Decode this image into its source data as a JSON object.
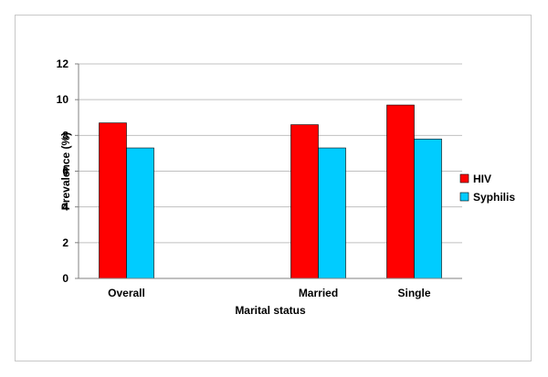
{
  "chart_data": {
    "type": "bar",
    "categories": [
      "Overall",
      "",
      "Married",
      "Single"
    ],
    "series": [
      {
        "name": "HIV",
        "color": "#ff0000",
        "values": [
          8.7,
          null,
          8.6,
          9.7
        ]
      },
      {
        "name": "Syphilis",
        "color": "#00ccff",
        "values": [
          7.3,
          null,
          7.3,
          7.8
        ]
      }
    ],
    "xlabel": "Marital status",
    "ylabel": "Prevalence (%)",
    "ylim": [
      0,
      12
    ],
    "yticks": [
      0,
      2,
      4,
      6,
      8,
      10,
      12
    ],
    "grid": true,
    "legend": "right"
  }
}
